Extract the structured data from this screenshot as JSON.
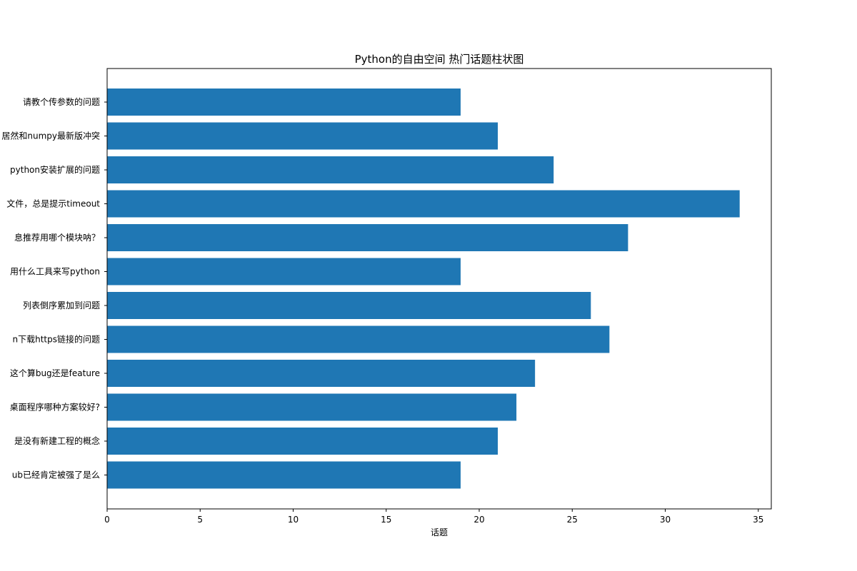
{
  "chart_data": {
    "type": "bar",
    "orientation": "horizontal",
    "title": "Python的自由空间 热门话题柱状图",
    "xlabel": "话题",
    "ylabel": "",
    "xlim": [
      0,
      35.7
    ],
    "xticks": [
      0,
      5,
      10,
      15,
      20,
      25,
      30,
      35
    ],
    "categories": [
      "请教个传参数的问题",
      "居然和numpy最新版冲突",
      "python安装扩展的问题",
      "文件，总是提示timeout",
      "息推荐用哪个模块呐？",
      "用什么工具来写python",
      "列表倒序累加到问题",
      "n下载https链接的问题",
      "这个算bug还是feature",
      "桌面程序哪种方案较好?",
      "是没有新建工程的概念",
      "ub已经肯定被强了是么"
    ],
    "values": [
      19,
      21,
      24,
      34,
      28,
      19,
      26,
      27,
      23,
      22,
      21,
      19
    ],
    "bar_color": "#1f77b4"
  }
}
